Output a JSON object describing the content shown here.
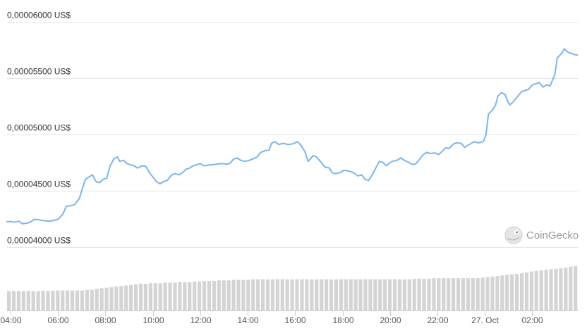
{
  "chart_data": {
    "type": "line",
    "title": "",
    "xlabel": "",
    "ylabel": "",
    "y_ticks": [
      {
        "value": 4e-05,
        "label": "0,00004000 US$"
      },
      {
        "value": 4.5e-05,
        "label": "0,00004500 US$"
      },
      {
        "value": 5e-05,
        "label": "0,00005000 US$"
      },
      {
        "value": 5.5e-05,
        "label": "0,00005500 US$"
      },
      {
        "value": 6e-05,
        "label": "0,00006000 US$"
      }
    ],
    "ylim": [
      3.96e-05,
      6.05e-05
    ],
    "x_ticks": [
      {
        "hour": 4,
        "label": "04:00"
      },
      {
        "hour": 6,
        "label": "06:00"
      },
      {
        "hour": 8,
        "label": "08:00"
      },
      {
        "hour": 10,
        "label": "10:00"
      },
      {
        "hour": 12,
        "label": "12:00"
      },
      {
        "hour": 14,
        "label": "14:00"
      },
      {
        "hour": 16,
        "label": "16:00"
      },
      {
        "hour": 18,
        "label": "18:00"
      },
      {
        "hour": 20,
        "label": "20:00"
      },
      {
        "hour": 22,
        "label": "22:00"
      },
      {
        "hour": 24,
        "label": "27. Oct"
      },
      {
        "hour": 26,
        "label": "02:00"
      }
    ],
    "xlim_hours": [
      3.85,
      27.95
    ],
    "grid": true,
    "line_color": "#7cb5ec",
    "series": [
      {
        "points": [
          [
            3.85,
            4.225e-05
          ],
          [
            4.0,
            4.225e-05
          ],
          [
            4.15,
            4.218e-05
          ],
          [
            4.35,
            4.228e-05
          ],
          [
            4.5,
            4.205e-05
          ],
          [
            4.7,
            4.21e-05
          ],
          [
            4.9,
            4.228e-05
          ],
          [
            5.0,
            4.245e-05
          ],
          [
            5.2,
            4.24e-05
          ],
          [
            5.4,
            4.232e-05
          ],
          [
            5.6,
            4.228e-05
          ],
          [
            5.8,
            4.232e-05
          ],
          [
            6.0,
            4.245e-05
          ],
          [
            6.2,
            4.29e-05
          ],
          [
            6.35,
            4.36e-05
          ],
          [
            6.5,
            4.365e-05
          ],
          [
            6.7,
            4.375e-05
          ],
          [
            6.9,
            4.43e-05
          ],
          [
            7.0,
            4.5e-05
          ],
          [
            7.15,
            4.6e-05
          ],
          [
            7.3,
            4.62e-05
          ],
          [
            7.45,
            4.64e-05
          ],
          [
            7.6,
            4.58e-05
          ],
          [
            7.75,
            4.57e-05
          ],
          [
            7.9,
            4.6e-05
          ],
          [
            8.05,
            4.61e-05
          ],
          [
            8.2,
            4.72e-05
          ],
          [
            8.35,
            4.78e-05
          ],
          [
            8.5,
            4.8e-05
          ],
          [
            8.6,
            4.76e-05
          ],
          [
            8.75,
            4.77e-05
          ],
          [
            8.9,
            4.74e-05
          ],
          [
            9.05,
            4.73e-05
          ],
          [
            9.2,
            4.72e-05
          ],
          [
            9.35,
            4.7e-05
          ],
          [
            9.55,
            4.72e-05
          ],
          [
            9.7,
            4.715e-05
          ],
          [
            9.85,
            4.66e-05
          ],
          [
            10.0,
            4.62e-05
          ],
          [
            10.15,
            4.58e-05
          ],
          [
            10.3,
            4.56e-05
          ],
          [
            10.45,
            4.58e-05
          ],
          [
            10.6,
            4.59e-05
          ],
          [
            10.8,
            4.64e-05
          ],
          [
            10.95,
            4.65e-05
          ],
          [
            11.1,
            4.64e-05
          ],
          [
            11.25,
            4.66e-05
          ],
          [
            11.4,
            4.69e-05
          ],
          [
            11.55,
            4.7e-05
          ],
          [
            11.7,
            4.72e-05
          ],
          [
            11.85,
            4.73e-05
          ],
          [
            12.0,
            4.74e-05
          ],
          [
            12.15,
            4.72e-05
          ],
          [
            12.3,
            4.725e-05
          ],
          [
            12.5,
            4.73e-05
          ],
          [
            12.7,
            4.735e-05
          ],
          [
            12.9,
            4.74e-05
          ],
          [
            13.1,
            4.735e-05
          ],
          [
            13.25,
            4.74e-05
          ],
          [
            13.4,
            4.78e-05
          ],
          [
            13.55,
            4.79e-05
          ],
          [
            13.7,
            4.77e-05
          ],
          [
            13.85,
            4.76e-05
          ],
          [
            14.0,
            4.765e-05
          ],
          [
            14.2,
            4.78e-05
          ],
          [
            14.4,
            4.8e-05
          ],
          [
            14.55,
            4.84e-05
          ],
          [
            14.75,
            4.855e-05
          ],
          [
            14.9,
            4.86e-05
          ],
          [
            15.0,
            4.92e-05
          ],
          [
            15.15,
            4.935e-05
          ],
          [
            15.3,
            4.91e-05
          ],
          [
            15.5,
            4.92e-05
          ],
          [
            15.7,
            4.91e-05
          ],
          [
            15.9,
            4.915e-05
          ],
          [
            16.1,
            4.935e-05
          ],
          [
            16.25,
            4.9e-05
          ],
          [
            16.4,
            4.85e-05
          ],
          [
            16.55,
            4.76e-05
          ],
          [
            16.75,
            4.81e-05
          ],
          [
            16.9,
            4.8e-05
          ],
          [
            17.1,
            4.75e-05
          ],
          [
            17.25,
            4.71e-05
          ],
          [
            17.45,
            4.7e-05
          ],
          [
            17.55,
            4.66e-05
          ],
          [
            17.7,
            4.65e-05
          ],
          [
            17.9,
            4.66e-05
          ],
          [
            18.05,
            4.68e-05
          ],
          [
            18.25,
            4.675e-05
          ],
          [
            18.45,
            4.66e-05
          ],
          [
            18.65,
            4.63e-05
          ],
          [
            18.8,
            4.64e-05
          ],
          [
            18.95,
            4.6e-05
          ],
          [
            19.1,
            4.59e-05
          ],
          [
            19.25,
            4.64e-05
          ],
          [
            19.4,
            4.7e-05
          ],
          [
            19.55,
            4.76e-05
          ],
          [
            19.7,
            4.75e-05
          ],
          [
            19.85,
            4.72e-05
          ],
          [
            19.95,
            4.74e-05
          ],
          [
            20.1,
            4.76e-05
          ],
          [
            20.3,
            4.77e-05
          ],
          [
            20.45,
            4.79e-05
          ],
          [
            20.6,
            4.77e-05
          ],
          [
            20.8,
            4.75e-05
          ],
          [
            20.95,
            4.73e-05
          ],
          [
            21.1,
            4.74e-05
          ],
          [
            21.25,
            4.78e-05
          ],
          [
            21.4,
            4.82e-05
          ],
          [
            21.55,
            4.84e-05
          ],
          [
            21.7,
            4.83e-05
          ],
          [
            21.9,
            4.835e-05
          ],
          [
            22.05,
            4.82e-05
          ],
          [
            22.2,
            4.85e-05
          ],
          [
            22.35,
            4.88e-05
          ],
          [
            22.5,
            4.875e-05
          ],
          [
            22.65,
            4.91e-05
          ],
          [
            22.8,
            4.925e-05
          ],
          [
            23.0,
            4.92e-05
          ],
          [
            23.15,
            4.885e-05
          ],
          [
            23.35,
            4.91e-05
          ],
          [
            23.55,
            4.935e-05
          ],
          [
            23.7,
            4.925e-05
          ],
          [
            23.85,
            4.93e-05
          ],
          [
            23.95,
            4.94e-05
          ],
          [
            24.05,
            5e-05
          ],
          [
            24.15,
            5.18e-05
          ],
          [
            24.3,
            5.21e-05
          ],
          [
            24.45,
            5.26e-05
          ],
          [
            24.55,
            5.34e-05
          ],
          [
            24.7,
            5.37e-05
          ],
          [
            24.85,
            5.355e-05
          ],
          [
            24.95,
            5.3e-05
          ],
          [
            25.05,
            5.26e-05
          ],
          [
            25.2,
            5.29e-05
          ],
          [
            25.35,
            5.33e-05
          ],
          [
            25.55,
            5.38e-05
          ],
          [
            25.7,
            5.39e-05
          ],
          [
            25.85,
            5.4e-05
          ],
          [
            26.0,
            5.44e-05
          ],
          [
            26.15,
            5.45e-05
          ],
          [
            26.3,
            5.46e-05
          ],
          [
            26.45,
            5.42e-05
          ],
          [
            26.6,
            5.44e-05
          ],
          [
            26.75,
            5.43e-05
          ],
          [
            26.85,
            5.48e-05
          ],
          [
            26.95,
            5.53e-05
          ],
          [
            27.05,
            5.68e-05
          ],
          [
            27.15,
            5.7e-05
          ],
          [
            27.25,
            5.72e-05
          ],
          [
            27.35,
            5.76e-05
          ],
          [
            27.5,
            5.73e-05
          ],
          [
            27.65,
            5.72e-05
          ],
          [
            27.75,
            5.71e-05
          ],
          [
            27.9,
            5.705e-05
          ]
        ]
      }
    ],
    "volume": {
      "color": "#d4d4d4",
      "values_relative": [
        0.35,
        0.35,
        0.35,
        0.35,
        0.35,
        0.35,
        0.35,
        0.355,
        0.355,
        0.355,
        0.36,
        0.36,
        0.36,
        0.36,
        0.36,
        0.36,
        0.37,
        0.37,
        0.39,
        0.4,
        0.41,
        0.42,
        0.43,
        0.44,
        0.45,
        0.46,
        0.47,
        0.48,
        0.48,
        0.49,
        0.49,
        0.49,
        0.5,
        0.5,
        0.5,
        0.51,
        0.51,
        0.51,
        0.52,
        0.52,
        0.53,
        0.53,
        0.53,
        0.54,
        0.54,
        0.54,
        0.55,
        0.55,
        0.55,
        0.55,
        0.56,
        0.56,
        0.56,
        0.56,
        0.56,
        0.56,
        0.56,
        0.56,
        0.56,
        0.56,
        0.56,
        0.56,
        0.56,
        0.56,
        0.56,
        0.56,
        0.56,
        0.56,
        0.56,
        0.56,
        0.56,
        0.56,
        0.56,
        0.56,
        0.56,
        0.56,
        0.56,
        0.56,
        0.56,
        0.56,
        0.56,
        0.56,
        0.56,
        0.57,
        0.57,
        0.57,
        0.57,
        0.58,
        0.58,
        0.58,
        0.58,
        0.58,
        0.58,
        0.58,
        0.58,
        0.58,
        0.58,
        0.59,
        0.6,
        0.61,
        0.62,
        0.63,
        0.64,
        0.65,
        0.66,
        0.67,
        0.68,
        0.7,
        0.71,
        0.72,
        0.73,
        0.74,
        0.75,
        0.76,
        0.77,
        0.79,
        0.8
      ]
    }
  },
  "watermark": {
    "text": "CoinGecko",
    "icon": "coingecko-gecko-icon"
  }
}
